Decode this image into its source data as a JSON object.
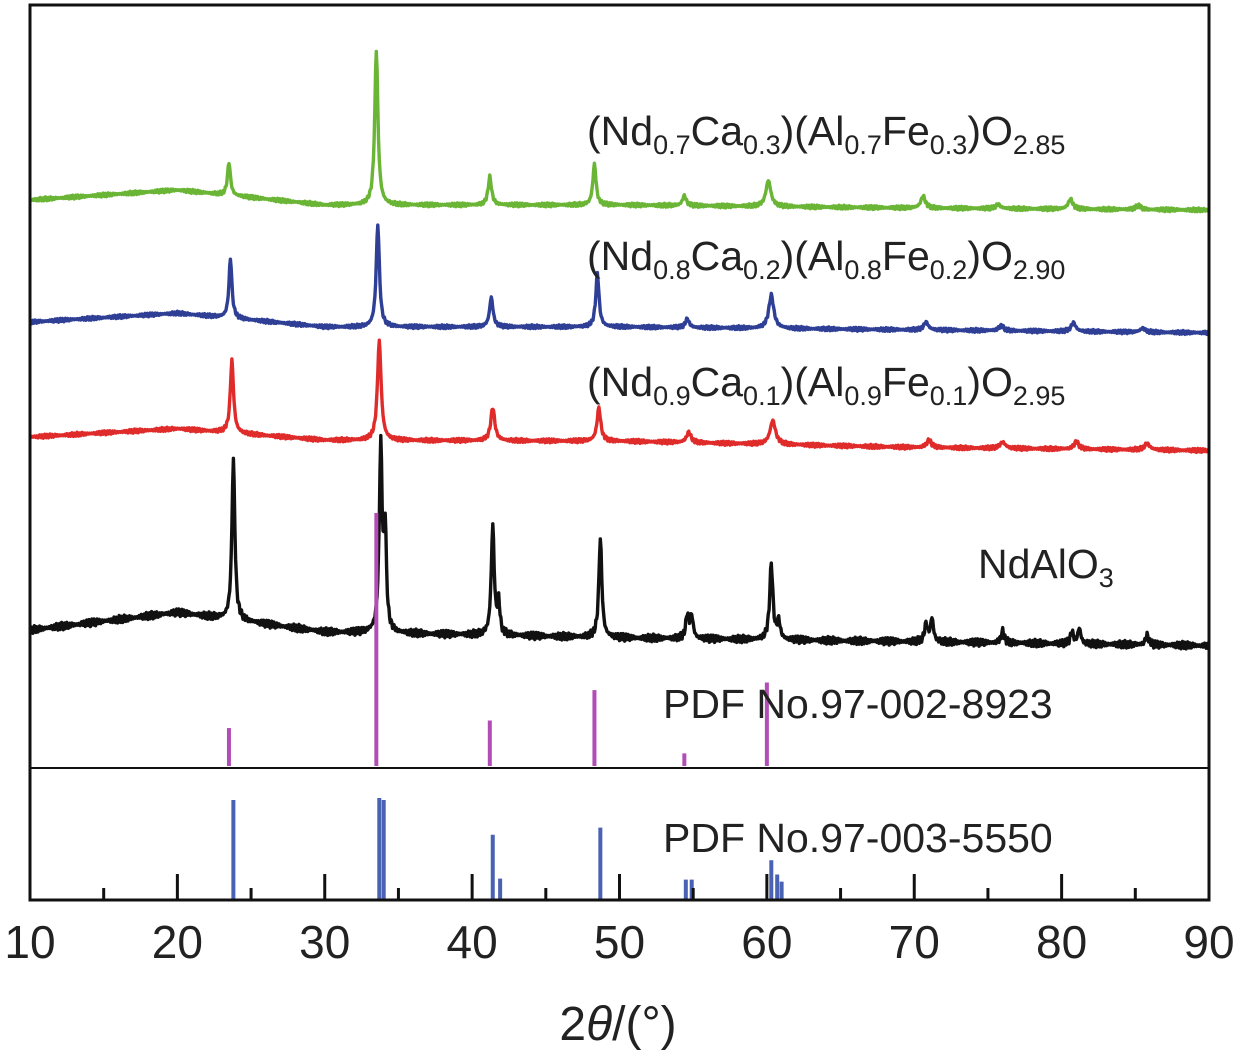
{
  "chart_data": {
    "type": "line",
    "xlabel": {
      "prefix": "2",
      "symbol": "θ",
      "suffix": "/(°)"
    },
    "xlim": [
      10,
      90
    ],
    "x_ticks": [
      10,
      20,
      30,
      40,
      50,
      60,
      70,
      80,
      90
    ],
    "grid": false,
    "series": [
      {
        "label": "(Nd0.7Ca0.3)(Al0.7Fe0.3)O2.85",
        "label_parts": [
          [
            "(Nd",
            ""
          ],
          [
            "0.7",
            "sub"
          ],
          [
            "Ca",
            ""
          ],
          [
            "0.3",
            "sub"
          ],
          [
            ")(Al",
            ""
          ],
          [
            "0.7",
            "sub"
          ],
          [
            "Fe",
            ""
          ],
          [
            "0.3",
            "sub"
          ],
          [
            ")O",
            ""
          ],
          [
            "2.85",
            "sub"
          ]
        ],
        "color": "#6ab535",
        "baseline": [
          [
            10,
            0.0
          ],
          [
            20,
            1.0
          ],
          [
            30,
            -0.5
          ],
          [
            50,
            -0.5
          ],
          [
            70,
            -0.8
          ],
          [
            90,
            -1.0
          ]
        ],
        "peaks": [
          [
            23.5,
            3.3,
            0.12
          ],
          [
            33.5,
            15.5,
            0.13
          ],
          [
            41.2,
            2.8,
            0.14
          ],
          [
            48.3,
            4.1,
            0.13
          ],
          [
            54.4,
            1.0,
            0.15
          ],
          [
            60.1,
            2.6,
            0.2
          ],
          [
            70.6,
            1.2,
            0.18
          ],
          [
            75.7,
            0.4,
            0.2
          ],
          [
            80.6,
            1.0,
            0.18
          ],
          [
            85.2,
            0.4,
            0.2
          ]
        ]
      },
      {
        "label": "(Nd0.8Ca0.2)(Al0.8Fe0.2)O2.90",
        "label_parts": [
          [
            "(Nd",
            ""
          ],
          [
            "0.8",
            "sub"
          ],
          [
            "Ca",
            ""
          ],
          [
            "0.2",
            "sub"
          ],
          [
            ")(Al",
            ""
          ],
          [
            "0.8",
            "sub"
          ],
          [
            "Fe",
            ""
          ],
          [
            "0.2",
            "sub"
          ],
          [
            ")O",
            ""
          ],
          [
            "2.90",
            "sub"
          ]
        ],
        "color": "#2e3f95",
        "baseline": [
          [
            10,
            0.0
          ],
          [
            20,
            0.9
          ],
          [
            30,
            -0.5
          ],
          [
            50,
            -0.5
          ],
          [
            70,
            -0.8
          ],
          [
            90,
            -1.1
          ]
        ],
        "peaks": [
          [
            23.6,
            6.1,
            0.12
          ],
          [
            33.6,
            10.5,
            0.13
          ],
          [
            41.3,
            3.0,
            0.14
          ],
          [
            48.5,
            5.5,
            0.13
          ],
          [
            54.6,
            0.9,
            0.15
          ],
          [
            60.3,
            3.4,
            0.2
          ],
          [
            70.8,
            0.8,
            0.18
          ],
          [
            75.9,
            0.5,
            0.2
          ],
          [
            80.8,
            0.9,
            0.18
          ],
          [
            85.5,
            0.4,
            0.2
          ]
        ]
      },
      {
        "label": "(Nd0.9Ca0.1)(Al0.9Fe0.1)O2.95",
        "label_parts": [
          [
            "(Nd",
            ""
          ],
          [
            "0.9",
            "sub"
          ],
          [
            "Ca",
            ""
          ],
          [
            "0.1",
            "sub"
          ],
          [
            ")(Al",
            ""
          ],
          [
            "0.9",
            "sub"
          ],
          [
            "Fe",
            ""
          ],
          [
            "0.1",
            "sub"
          ],
          [
            ")O",
            ""
          ],
          [
            "2.95",
            "sub"
          ]
        ],
        "color": "#e02b2b",
        "baseline": [
          [
            10,
            0.0
          ],
          [
            20,
            0.8
          ],
          [
            30,
            -0.3
          ],
          [
            50,
            -0.4
          ],
          [
            70,
            -1.0
          ],
          [
            90,
            -1.3
          ]
        ],
        "peaks": [
          [
            23.7,
            7.0,
            0.13
          ],
          [
            33.7,
            9.5,
            0.15
          ],
          [
            41.4,
            3.2,
            0.16
          ],
          [
            48.6,
            3.2,
            0.15
          ],
          [
            54.7,
            1.0,
            0.18
          ],
          [
            60.4,
            2.3,
            0.22
          ],
          [
            71.0,
            0.7,
            0.2
          ],
          [
            76.0,
            0.6,
            0.22
          ],
          [
            81.0,
            0.7,
            0.2
          ],
          [
            85.8,
            0.6,
            0.22
          ]
        ]
      },
      {
        "label": "NdAlO3",
        "label_parts": [
          [
            "NdAlO",
            ""
          ],
          [
            "3",
            "sub"
          ]
        ],
        "color": "#111111",
        "baseline": [
          [
            10,
            0.0
          ],
          [
            20,
            0.9
          ],
          [
            30,
            -0.1
          ],
          [
            50,
            -0.4
          ],
          [
            70,
            -0.6
          ],
          [
            90,
            -0.8
          ]
        ],
        "peaks": [
          [
            23.8,
            8.2,
            0.12
          ],
          [
            33.8,
            9.5,
            0.12
          ],
          [
            34.1,
            5.0,
            0.1
          ],
          [
            41.4,
            5.6,
            0.12
          ],
          [
            41.8,
            1.6,
            0.1
          ],
          [
            48.7,
            5.1,
            0.12
          ],
          [
            54.6,
            1.2,
            0.12
          ],
          [
            54.9,
            1.1,
            0.12
          ],
          [
            60.3,
            3.9,
            0.13
          ],
          [
            60.8,
            0.9,
            0.12
          ],
          [
            70.8,
            0.9,
            0.12
          ],
          [
            71.2,
            1.2,
            0.12
          ],
          [
            76.0,
            0.6,
            0.13
          ],
          [
            80.7,
            0.6,
            0.12
          ],
          [
            81.2,
            0.8,
            0.12
          ],
          [
            85.8,
            0.5,
            0.13
          ]
        ]
      }
    ],
    "references": [
      {
        "label": "PDF No.97-002-8923",
        "color": "#b14db5",
        "lines": [
          [
            23.5,
            0.15
          ],
          [
            33.5,
            1.0
          ],
          [
            41.2,
            0.18
          ],
          [
            48.3,
            0.3
          ],
          [
            54.4,
            0.05
          ],
          [
            60.0,
            0.33
          ]
        ]
      },
      {
        "label": "PDF No.97-003-5550",
        "color": "#4a62b4",
        "lines": [
          [
            23.8,
            0.98
          ],
          [
            33.7,
            1.0
          ],
          [
            34.0,
            0.98
          ],
          [
            41.4,
            0.64
          ],
          [
            41.9,
            0.21
          ],
          [
            48.7,
            0.71
          ],
          [
            54.5,
            0.2
          ],
          [
            54.9,
            0.2
          ],
          [
            60.3,
            0.39
          ],
          [
            60.7,
            0.25
          ],
          [
            61.0,
            0.18
          ]
        ]
      }
    ]
  }
}
